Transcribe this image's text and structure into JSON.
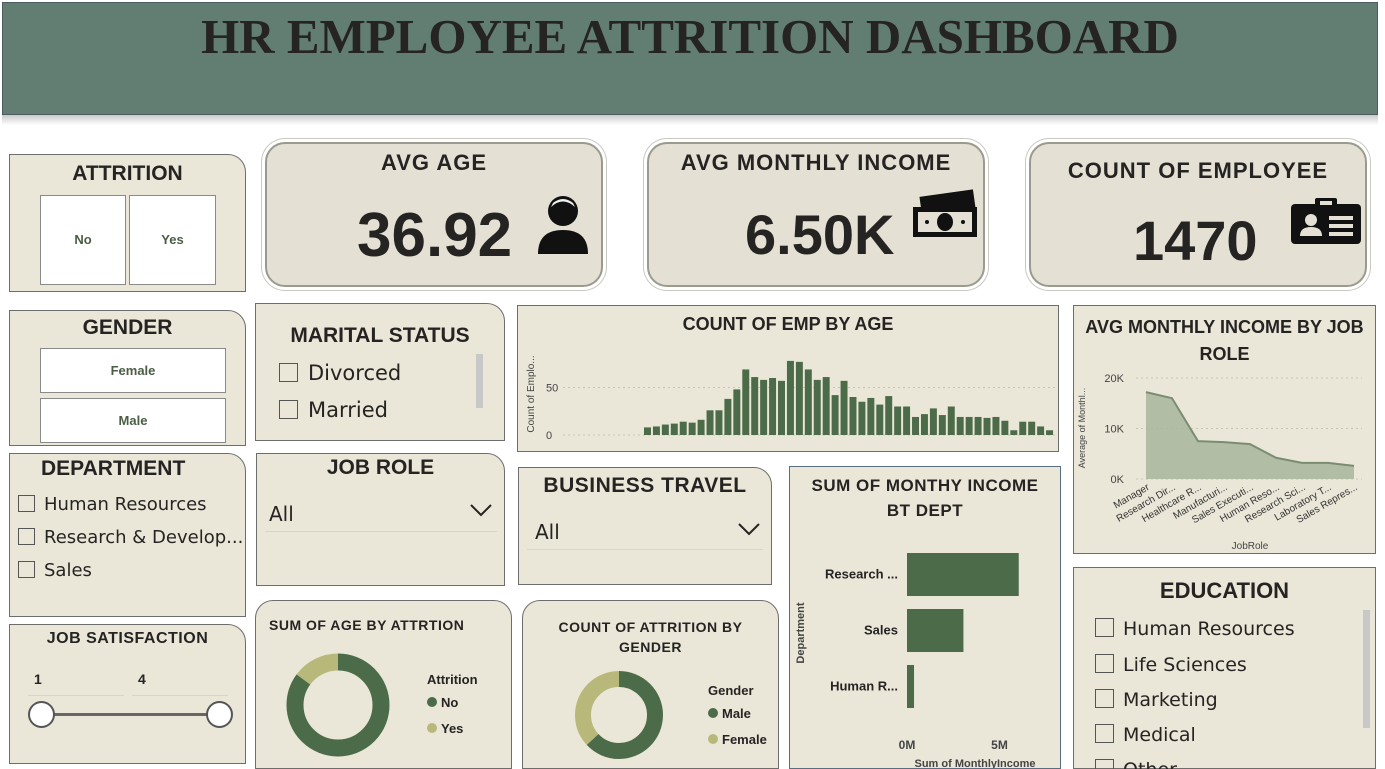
{
  "title": "HR EMPLOYEE ATTRITION DASHBOARD",
  "colors": {
    "header": "#627e72",
    "card": "#eae7d8",
    "primary": "#4c6b49",
    "secondary": "#b8b87a"
  },
  "attrition": {
    "title": "ATTRITION",
    "options": [
      "No",
      "Yes"
    ]
  },
  "kpis": {
    "avg_age": {
      "title": "AVG AGE",
      "value": "36.92",
      "icon": "person-icon"
    },
    "avg_income": {
      "title": "AVG MONTHLY INCOME",
      "value": "6.50K",
      "icon": "money-icon"
    },
    "count": {
      "title": "COUNT OF EMPLOYEE",
      "value": "1470",
      "icon": "id-card-icon"
    }
  },
  "gender": {
    "title": "GENDER",
    "options": [
      "Female",
      "Male"
    ]
  },
  "marital": {
    "title": "MARITAL STATUS",
    "options": [
      "Divorced",
      "Married"
    ]
  },
  "department": {
    "title": "DEPARTMENT",
    "options": [
      "Human Resources",
      "Research & Develop...",
      "Sales"
    ]
  },
  "job_role": {
    "title": "JOB ROLE",
    "value": "All"
  },
  "business_travel": {
    "title": "BUSINESS TRAVEL",
    "value": "All"
  },
  "job_satisfaction": {
    "title": "JOB SATISFACTION",
    "min": "1",
    "max": "4"
  },
  "education": {
    "title": "EDUCATION",
    "options": [
      "Human Resources",
      "Life Sciences",
      "Marketing",
      "Medical",
      "Other"
    ]
  },
  "chart_data": [
    {
      "id": "age",
      "type": "bar",
      "title": "COUNT OF EMP BY AGE",
      "ylabel": "Count of Emplo...",
      "ytick_labels": [
        "0",
        "50"
      ],
      "ylim": [
        0,
        80
      ],
      "values": [
        8,
        9,
        11,
        12,
        14,
        13,
        16,
        26,
        26,
        38,
        48,
        69,
        61,
        58,
        60,
        57,
        78,
        77,
        69,
        58,
        61,
        42,
        57,
        40,
        35,
        39,
        32,
        41,
        30,
        30,
        19,
        22,
        28,
        21,
        30,
        19,
        19,
        19,
        18,
        19,
        15,
        5,
        14,
        14,
        9,
        5
      ]
    },
    {
      "id": "jobrole",
      "type": "area",
      "title": "AVG MONTHLY INCOME BY JOB ROLE",
      "xlabel": "JobRole",
      "ylabel": "Average of Monthl...",
      "ytick_labels": [
        "0K",
        "10K",
        "20K"
      ],
      "ylim": [
        0,
        20000
      ],
      "categories": [
        "Manager",
        "Research Dir...",
        "Healthcare R...",
        "Manufacturi...",
        "Sales Executi...",
        "Human Reso...",
        "Research Sci...",
        "Laboratory T...",
        "Sales Repres..."
      ],
      "values": [
        17200,
        16000,
        7500,
        7300,
        6900,
        4200,
        3200,
        3200,
        2600
      ]
    },
    {
      "id": "dept",
      "type": "bar",
      "title": "SUM OF MONTHY INCOME BT DEPT",
      "xlabel": "Sum of MonthlyIncome",
      "ylabel": "Department",
      "xtick_labels": [
        "0M",
        "5M"
      ],
      "xlim": [
        0,
        6000000
      ],
      "categories": [
        "Research ...",
        "Sales",
        "Human R..."
      ],
      "values": [
        6040000,
        3050000,
        380000
      ]
    },
    {
      "id": "age_attr",
      "type": "pie",
      "title": "SUM OF AGE BY ATTRTION",
      "legend_title": "Attrition",
      "categories": [
        "No",
        "Yes"
      ],
      "values": [
        85,
        15
      ]
    },
    {
      "id": "gender_attr",
      "type": "pie",
      "title": "COUNT OF ATTRITION BY GENDER",
      "legend_title": "Gender",
      "categories": [
        "Male",
        "Female"
      ],
      "values": [
        63,
        37
      ]
    }
  ]
}
